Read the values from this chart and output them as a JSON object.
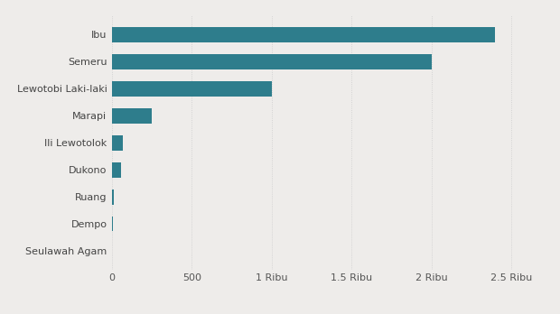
{
  "categories": [
    "Ibu",
    "Semeru",
    "Lewotobi Laki-laki",
    "Marapi",
    "Ili Lewotolok",
    "Dukono",
    "Ruang",
    "Dempo",
    "Seulawah Agam"
  ],
  "values": [
    2400,
    2000,
    1000,
    250,
    70,
    55,
    12,
    8,
    0
  ],
  "bar_color": "#2e7d8c",
  "background_color": "#eeecea",
  "xlim": [
    0,
    2700
  ],
  "xtick_values": [
    0,
    500,
    1000,
    1500,
    2000,
    2500
  ],
  "xtick_labels": [
    "0",
    "500",
    "1 Ribu",
    "1.5 Ribu",
    "2 Ribu",
    "2.5 Ribu"
  ],
  "grid_color": "#cccccc",
  "bar_height": 0.55,
  "font_size": 8,
  "label_font_size": 8
}
